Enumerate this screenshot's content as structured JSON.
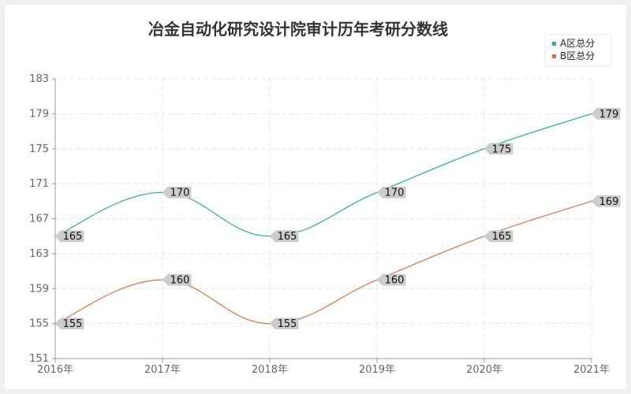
{
  "chart_data": {
    "type": "line",
    "title": "冶金自动化研究设计院审计历年考研分数线",
    "categories": [
      "2016年",
      "2017年",
      "2018年",
      "2019年",
      "2020年",
      "2021年"
    ],
    "series": [
      {
        "name": "A区总分",
        "values": [
          165,
          170,
          165,
          170,
          175,
          179
        ],
        "color": "#2bb58a"
      },
      {
        "name": "B区总分",
        "values": [
          155,
          160,
          155,
          160,
          165,
          169
        ],
        "color": "#e2703f"
      }
    ],
    "ylim": [
      151,
      183
    ],
    "yticks": [
      151,
      155,
      159,
      163,
      167,
      171,
      175,
      179,
      183
    ],
    "grid": true,
    "legend_position": "top-right",
    "smooth": true
  }
}
